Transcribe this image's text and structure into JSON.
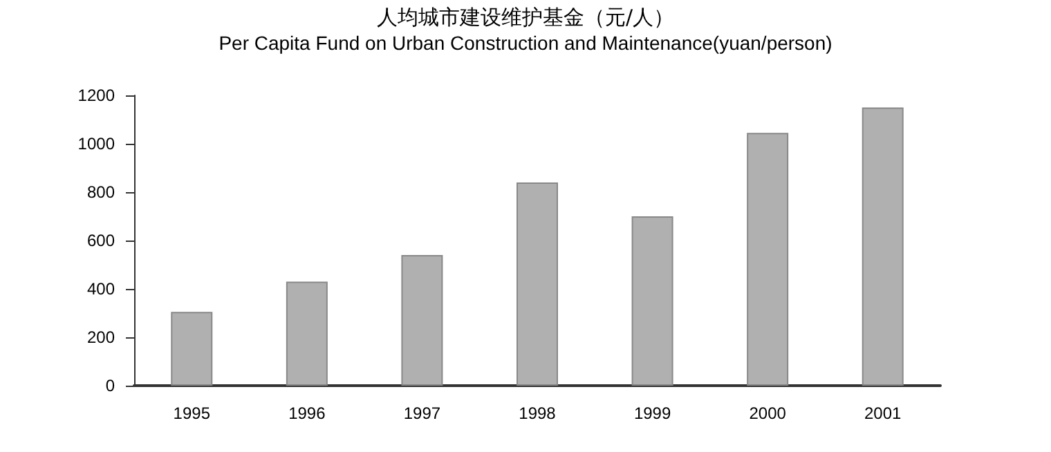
{
  "chart_data": {
    "type": "bar",
    "title": "人均城市建设维护基金（元/人）",
    "subtitle": "Per Capita Fund on Urban Construction and Maintenance(yuan/person)",
    "categories": [
      "1995",
      "1996",
      "1997",
      "1998",
      "1999",
      "2000",
      "2001"
    ],
    "values": [
      305,
      430,
      540,
      840,
      700,
      1045,
      1150
    ],
    "color": "#b0b0b0",
    "ylim": [
      0,
      1200
    ],
    "yticks": [
      0,
      200,
      400,
      600,
      800,
      1000,
      1200
    ],
    "grid": false
  }
}
